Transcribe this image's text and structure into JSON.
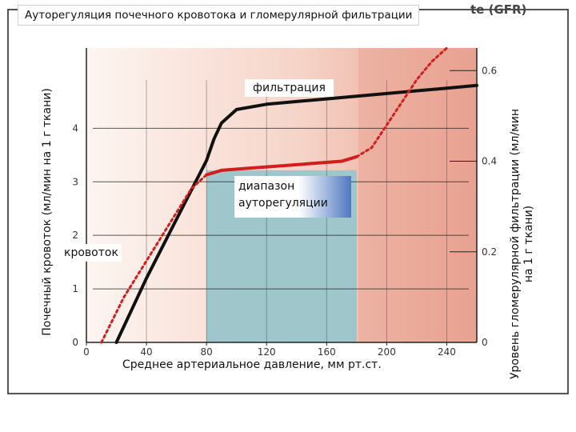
{
  "chart_data": {
    "type": "line",
    "title": "Ауторегуляция почечного кровотока и гломерулярной фильтрации",
    "header_fragment": "te (GFR)",
    "xlabel": "Среднее артериальное давление, мм рт.ст.",
    "ylabel_left": "Почечный кровоток (мл/мин на 1 г ткани)",
    "ylabel_right": "Уровень гломерулярной фильтрации (мл/мин на 1 г ткани)",
    "xlim": [
      0,
      260
    ],
    "ylim_left": [
      0,
      5.5
    ],
    "ylim_right": [
      0,
      0.65
    ],
    "x_ticks": [
      "0",
      "40",
      "80",
      "120",
      "160",
      "200",
      "240"
    ],
    "y_ticks_left": [
      "0",
      "1",
      "2",
      "3",
      "4"
    ],
    "y_ticks_right": [
      "0",
      "0.2",
      "0.4",
      "0.6"
    ],
    "autoregulation_range": [
      80,
      180
    ],
    "annotations": {
      "filtration": "фильтрация",
      "flow": "кровоток",
      "range": "диапазон ауторегуляции"
    },
    "series": [
      {
        "axis": "left",
        "color": "#111111",
        "style": "solid",
        "x": [
          20,
          40,
          60,
          80,
          85,
          90,
          100,
          120,
          140,
          160,
          180,
          200,
          220,
          240,
          260
        ],
        "y": [
          0,
          1.2,
          2.3,
          3.4,
          3.8,
          4.1,
          4.35,
          4.45,
          4.5,
          4.55,
          4.6,
          4.65,
          4.7,
          4.75,
          4.8
        ]
      },
      {
        "axis": "right",
        "color": "#d21e1e",
        "style": "dotted-solid-dotted",
        "x": [
          10,
          25,
          40,
          55,
          70,
          80,
          90,
          110,
          130,
          150,
          170,
          180,
          190,
          200,
          210,
          220,
          230,
          240
        ],
        "y": [
          0,
          0.1,
          0.18,
          0.26,
          0.34,
          0.37,
          0.38,
          0.385,
          0.39,
          0.395,
          0.4,
          0.41,
          0.43,
          0.48,
          0.53,
          0.58,
          0.62,
          0.65
        ]
      }
    ],
    "colors": {
      "background_left": "#fbf0ea",
      "background_right": "#eba898",
      "range_fill": "#9ec8cc",
      "black_curve": "#111111",
      "red_curve": "#d21e1e",
      "range_label_accent": "#4f78c0"
    }
  }
}
